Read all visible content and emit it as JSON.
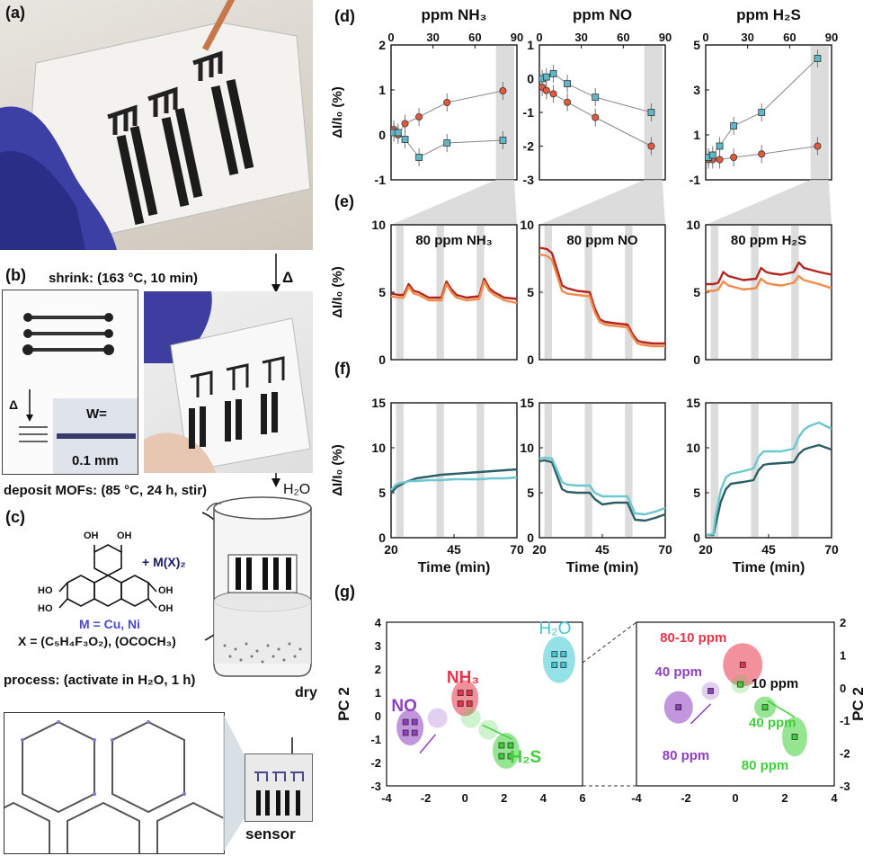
{
  "panels": {
    "a": "(a)",
    "b": "(b)",
    "c": "(c)",
    "d": "(d)",
    "e": "(e)",
    "f": "(f)",
    "g": "(g)"
  },
  "left": {
    "shrink_step": "shrink: (163 °C, 10 min)",
    "delta": "Δ",
    "delta_small": "Δ",
    "width_label": "W=",
    "width_value": "0.1 mm",
    "deposit_step": "deposit MOFs: (85 °C, 24 h, stir)",
    "water": "H₂O",
    "metal_plus": "+ M(X)₂",
    "metal_def": "M = Cu, Ni",
    "ligand_def": "X = (C₅H₄F₃O₂), (OCOCH₃)",
    "oh_label": "OH",
    "ho_label": "HO",
    "process_step": "process: (activate in H₂O, 1 h)",
    "dry": "dry",
    "sensor": "sensor"
  },
  "colors": {
    "red": "#e8573a",
    "teal": "#5fb8c8",
    "dark_red": "#b3261e",
    "orange": "#f28a4a",
    "dark_teal": "#2c5f66",
    "light_teal": "#6cc7cf",
    "pc_red": "#e8344a",
    "pc_purple": "#8e3fc0",
    "pc_green": "#3fcf3a",
    "pc_cyan": "#3ec8d6"
  },
  "chart_data": [
    {
      "type": "scatter",
      "panel": "d",
      "title": "ppm NH₃",
      "ylabel": "ΔI/I₀ (%)",
      "xlim": [
        0,
        90
      ],
      "ylim": [
        -1,
        2
      ],
      "xticks": [
        0,
        30,
        60,
        90
      ],
      "yticks": [
        -1,
        0,
        1,
        2
      ],
      "series": [
        {
          "color": "red",
          "marker": "circle",
          "x": [
            2,
            5,
            10,
            20,
            40,
            80
          ],
          "y": [
            0.12,
            0.0,
            0.25,
            0.4,
            0.72,
            0.98
          ]
        },
        {
          "color": "teal",
          "marker": "square",
          "x": [
            2,
            5,
            10,
            20,
            40,
            80
          ],
          "y": [
            0.05,
            0.05,
            -0.1,
            -0.5,
            -0.18,
            -0.12
          ]
        }
      ]
    },
    {
      "type": "scatter",
      "panel": "d",
      "title": "ppm NO",
      "xlim": [
        0,
        90
      ],
      "ylim": [
        -3,
        1
      ],
      "xticks": [
        0,
        30,
        60,
        90
      ],
      "yticks": [
        -3,
        -2,
        -1,
        0,
        1
      ],
      "series": [
        {
          "color": "red",
          "marker": "circle",
          "x": [
            2,
            5,
            10,
            20,
            40,
            80
          ],
          "y": [
            -0.25,
            -0.35,
            -0.45,
            -0.7,
            -1.15,
            -2.0
          ]
        },
        {
          "color": "teal",
          "marker": "square",
          "x": [
            2,
            5,
            10,
            20,
            40,
            80
          ],
          "y": [
            0.0,
            0.05,
            0.15,
            -0.15,
            -0.55,
            -1.0
          ]
        }
      ]
    },
    {
      "type": "scatter",
      "panel": "d",
      "title": "ppm H₂S",
      "xlim": [
        0,
        90
      ],
      "ylim": [
        -1,
        5
      ],
      "xticks": [
        0,
        30,
        60,
        90
      ],
      "yticks": [
        -1,
        1,
        3,
        5
      ],
      "series": [
        {
          "color": "red",
          "marker": "circle",
          "x": [
            2,
            5,
            10,
            20,
            40,
            80
          ],
          "y": [
            -0.1,
            -0.1,
            -0.1,
            0.0,
            0.15,
            0.5
          ]
        },
        {
          "color": "teal",
          "marker": "square",
          "x": [
            2,
            5,
            10,
            20,
            40,
            80
          ],
          "y": [
            0.0,
            0.1,
            0.5,
            1.4,
            2.0,
            4.4
          ]
        }
      ]
    },
    {
      "type": "line",
      "panel": "e",
      "title": "80 ppm NH₃",
      "ylabel": "ΔI/I₀ (%)",
      "xlim": [
        20,
        70
      ],
      "ylim": [
        0,
        10
      ],
      "yticks": [
        0,
        5,
        10
      ],
      "series": [
        {
          "color": "dark_red",
          "x": [
            20,
            23,
            25,
            27,
            29,
            31,
            35,
            40,
            42,
            44,
            46,
            50,
            55,
            57,
            59,
            61,
            65,
            70
          ],
          "y": [
            4.9,
            4.8,
            4.8,
            5.6,
            5.1,
            5.0,
            4.6,
            4.6,
            5.8,
            5.2,
            4.8,
            4.6,
            4.7,
            6.0,
            5.3,
            5.0,
            4.6,
            4.5
          ]
        },
        {
          "color": "orange",
          "x": [
            20,
            23,
            25,
            27,
            29,
            31,
            35,
            40,
            42,
            44,
            46,
            50,
            55,
            57,
            59,
            61,
            65,
            70
          ],
          "y": [
            4.7,
            4.6,
            4.6,
            5.4,
            4.9,
            4.8,
            4.4,
            4.4,
            5.6,
            5.0,
            4.6,
            4.4,
            4.5,
            5.8,
            5.1,
            4.8,
            4.4,
            4.2
          ]
        }
      ]
    },
    {
      "type": "line",
      "panel": "e",
      "title": "80 ppm NO",
      "xlim": [
        20,
        70
      ],
      "ylim": [
        0,
        10
      ],
      "yticks": [
        0,
        5,
        10
      ],
      "series": [
        {
          "color": "dark_red",
          "x": [
            20,
            23,
            25,
            29,
            31,
            35,
            40,
            42,
            44,
            46,
            50,
            55,
            57,
            59,
            61,
            65,
            70
          ],
          "y": [
            8.3,
            8.2,
            7.9,
            5.5,
            5.3,
            5.1,
            5.0,
            3.8,
            3.0,
            2.8,
            2.7,
            2.6,
            1.9,
            1.4,
            1.3,
            1.2,
            1.2
          ]
        },
        {
          "color": "orange",
          "x": [
            20,
            23,
            25,
            29,
            31,
            35,
            40,
            42,
            44,
            46,
            50,
            55,
            57,
            59,
            61,
            65,
            70
          ],
          "y": [
            7.8,
            7.7,
            7.4,
            5.1,
            4.9,
            4.8,
            4.7,
            3.5,
            2.8,
            2.6,
            2.5,
            2.4,
            1.7,
            1.2,
            1.1,
            1.0,
            1.0
          ]
        }
      ]
    },
    {
      "type": "line",
      "panel": "e",
      "title": "80 ppm H₂S",
      "xlim": [
        20,
        70
      ],
      "ylim": [
        0,
        10
      ],
      "yticks": [
        0,
        5,
        10
      ],
      "series": [
        {
          "color": "dark_red",
          "x": [
            20,
            23,
            25,
            27,
            29,
            31,
            35,
            40,
            42,
            44,
            46,
            50,
            55,
            57,
            59,
            61,
            65,
            70
          ],
          "y": [
            5.6,
            5.6,
            5.7,
            6.5,
            6.2,
            6.1,
            5.9,
            6.0,
            6.8,
            6.5,
            6.4,
            6.3,
            6.5,
            7.2,
            6.8,
            6.7,
            6.5,
            6.3
          ]
        },
        {
          "color": "orange",
          "x": [
            20,
            23,
            25,
            27,
            29,
            31,
            35,
            40,
            42,
            44,
            46,
            50,
            55,
            57,
            59,
            61,
            65,
            70
          ],
          "y": [
            5.1,
            5.1,
            5.2,
            5.8,
            5.5,
            5.4,
            5.2,
            5.3,
            6.0,
            5.7,
            5.6,
            5.5,
            5.7,
            6.2,
            5.9,
            5.8,
            5.6,
            5.3
          ]
        }
      ]
    },
    {
      "type": "line",
      "panel": "f",
      "ylabel": "ΔI/I₀ (%)",
      "xlabel": "Time (min)",
      "xlim": [
        20,
        70
      ],
      "ylim": [
        0,
        15
      ],
      "xticks": [
        20,
        45,
        70
      ],
      "yticks": [
        0,
        5,
        10,
        15
      ],
      "series": [
        {
          "color": "dark_teal",
          "x": [
            20,
            22,
            24,
            26,
            28,
            30,
            35,
            40,
            45,
            50,
            55,
            60,
            65,
            70
          ],
          "y": [
            4.9,
            5.6,
            5.9,
            6.2,
            6.4,
            6.6,
            6.8,
            7.0,
            7.1,
            7.2,
            7.3,
            7.4,
            7.5,
            7.6
          ]
        },
        {
          "color": "light_teal",
          "x": [
            20,
            22,
            24,
            26,
            28,
            30,
            35,
            40,
            45,
            50,
            55,
            60,
            65,
            70
          ],
          "y": [
            5.3,
            5.9,
            6.1,
            6.2,
            6.3,
            6.3,
            6.4,
            6.4,
            6.5,
            6.5,
            6.5,
            6.6,
            6.6,
            6.7
          ]
        }
      ]
    },
    {
      "type": "line",
      "panel": "f",
      "xlabel": "Time (min)",
      "xlim": [
        20,
        70
      ],
      "ylim": [
        0,
        15
      ],
      "xticks": [
        20,
        45,
        70
      ],
      "yticks": [
        0,
        5,
        10,
        15
      ],
      "series": [
        {
          "color": "dark_teal",
          "x": [
            20,
            22,
            25,
            29,
            31,
            35,
            40,
            42,
            45,
            50,
            55,
            58,
            62,
            66,
            70
          ],
          "y": [
            8.5,
            8.6,
            8.4,
            5.4,
            5.1,
            5.0,
            5.0,
            4.3,
            3.7,
            3.9,
            3.9,
            2.0,
            1.9,
            2.2,
            2.6
          ]
        },
        {
          "color": "light_teal",
          "x": [
            20,
            22,
            25,
            29,
            31,
            35,
            40,
            42,
            45,
            50,
            55,
            58,
            62,
            66,
            70
          ],
          "y": [
            8.8,
            8.9,
            8.8,
            6.2,
            5.9,
            5.8,
            5.8,
            5.0,
            4.6,
            4.6,
            4.6,
            2.7,
            2.6,
            2.9,
            3.3
          ]
        }
      ]
    },
    {
      "type": "line",
      "panel": "f",
      "xlabel": "Time (min)",
      "xlim": [
        20,
        70
      ],
      "ylim": [
        0,
        15
      ],
      "xticks": [
        20,
        45,
        70
      ],
      "yticks": [
        0,
        5,
        10,
        15
      ],
      "series": [
        {
          "color": "dark_teal",
          "x": [
            20,
            23,
            24,
            26,
            28,
            30,
            35,
            39,
            41,
            43,
            45,
            50,
            55,
            57,
            59,
            61,
            65,
            70
          ],
          "y": [
            0.3,
            0.3,
            1.5,
            4.0,
            5.4,
            6.0,
            6.2,
            6.4,
            7.5,
            8.1,
            8.2,
            8.3,
            8.4,
            9.3,
            9.8,
            10.0,
            10.3,
            9.8
          ]
        },
        {
          "color": "light_teal",
          "x": [
            20,
            23,
            24,
            26,
            28,
            30,
            35,
            39,
            41,
            43,
            45,
            50,
            55,
            57,
            59,
            61,
            65,
            70
          ],
          "y": [
            0.3,
            0.4,
            2.5,
            5.3,
            6.7,
            7.1,
            7.4,
            7.7,
            9.0,
            9.6,
            9.6,
            9.6,
            9.9,
            11.2,
            12.0,
            12.4,
            12.8,
            12.1
          ]
        }
      ]
    },
    {
      "type": "scatter",
      "panel": "g",
      "ylabel": "PC 2",
      "xlim": [
        -4,
        6
      ],
      "ylim": [
        -3,
        4
      ],
      "xticks": [
        -4,
        -2,
        0,
        2,
        4,
        6
      ],
      "yticks": [
        -3,
        -2,
        -1,
        0,
        1,
        2,
        3,
        4
      ],
      "groups": [
        {
          "label": "NO",
          "color": "pc_purple",
          "x": -2.8,
          "y": -0.5
        },
        {
          "label": "NH₃",
          "color": "pc_red",
          "x": 0.0,
          "y": 0.75
        },
        {
          "label": "H₂O",
          "color": "pc_cyan",
          "x": 4.8,
          "y": 2.4
        },
        {
          "label": "H₂S",
          "color": "pc_green",
          "x": 2.1,
          "y": -1.5
        }
      ]
    },
    {
      "type": "scatter",
      "panel": "g-zoom",
      "ylabel": "PC 2",
      "xlim": [
        -4,
        4
      ],
      "ylim": [
        -3,
        2
      ],
      "xticks": [
        -4,
        -2,
        0,
        2,
        4
      ],
      "yticks": [
        -3,
        -2,
        -1,
        0,
        1,
        2
      ],
      "annotations": [
        "80-10 ppm",
        "40 ppm",
        "10 ppm",
        "80 ppm",
        "40 ppm",
        "80 ppm"
      ]
    }
  ]
}
